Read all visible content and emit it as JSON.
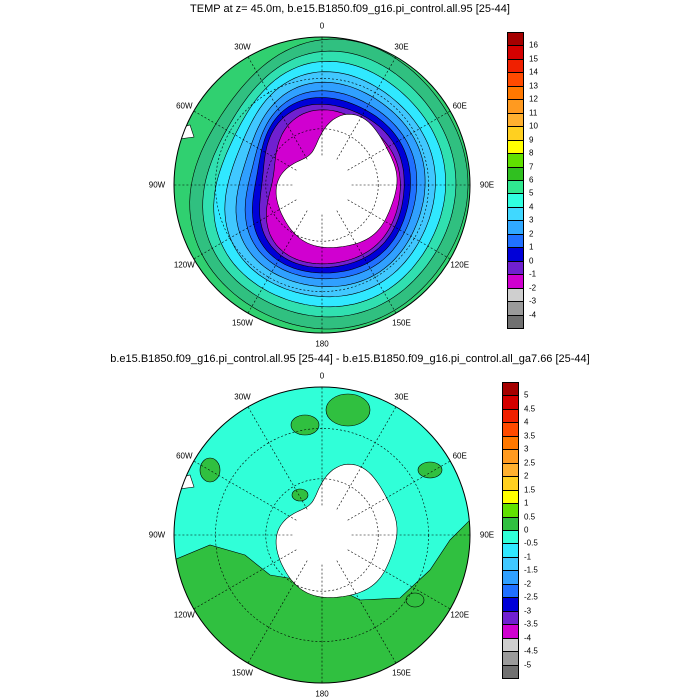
{
  "panel1": {
    "title": "TEMP at z=  45.0m, b.e15.B1850.f09_g16.pi_control.all.95 [25-44]",
    "lon_labels": [
      "0",
      "30E",
      "60E",
      "90E",
      "120E",
      "150E",
      "180",
      "150W",
      "120W",
      "90W",
      "60W",
      "30W"
    ],
    "colorbar": {
      "labels": [
        "16",
        "15",
        "14",
        "13",
        "12",
        "11",
        "10",
        "9",
        "8",
        "7",
        "6",
        "5",
        "4",
        "3",
        "2",
        "1",
        "0",
        "-1",
        "-2",
        "-3",
        "-4"
      ],
      "colors": [
        "#a50000",
        "#d40000",
        "#f02000",
        "#ff4a00",
        "#ff7800",
        "#ff9a20",
        "#ffb030",
        "#ffd020",
        "#ffff00",
        "#60e000",
        "#30c020",
        "#30e890",
        "#30ffe0",
        "#40d8ff",
        "#30a8ff",
        "#2070ff",
        "#0000d8",
        "#7020d0",
        "#d000d0",
        "#cfcfcf",
        "#9a9a9a",
        "#707070"
      ]
    }
  },
  "panel2": {
    "title": "b.e15.B1850.f09_g16.pi_control.all.95 [25-44] - b.e15.B1850.f09_g16.pi_control.all_ga7.66 [25-44]",
    "lon_labels": [
      "0",
      "30E",
      "60E",
      "90E",
      "120E",
      "150E",
      "180",
      "150W",
      "120W",
      "90W",
      "60W",
      "30W"
    ],
    "colorbar": {
      "labels": [
        "5",
        "4.5",
        "4",
        "3.5",
        "3",
        "2.5",
        "2",
        "1.5",
        "1",
        "0.5",
        "0",
        "-0.5",
        "-1",
        "-1.5",
        "-2",
        "-2.5",
        "-3",
        "-3.5",
        "-4",
        "-4.5",
        "-5"
      ],
      "colors": [
        "#a50000",
        "#d40000",
        "#f02000",
        "#ff4a00",
        "#ff7800",
        "#ff9a20",
        "#ffb030",
        "#ffd020",
        "#ffff00",
        "#60e000",
        "#30c040",
        "#30ffd8",
        "#30e8ff",
        "#40c8ff",
        "#30a0ff",
        "#2070ff",
        "#0000d8",
        "#7020d0",
        "#d000d0",
        "#cfcfcf",
        "#9a9a9a",
        "#707070"
      ]
    }
  }
}
